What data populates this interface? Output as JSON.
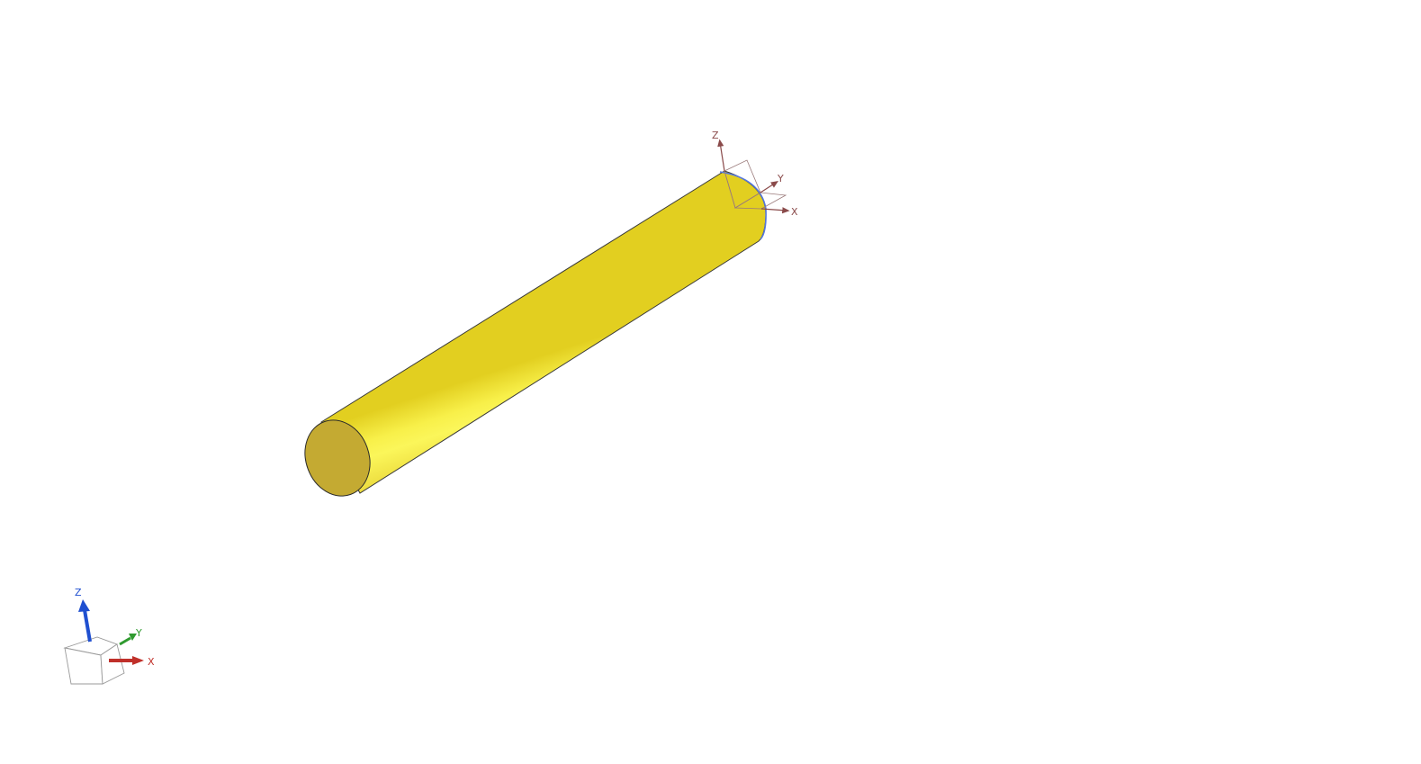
{
  "viewport": {
    "background": "#ffffff"
  },
  "model": {
    "shape": "cylinder",
    "body_color": "#f5e93a",
    "end_cap_color": "#c4aa32",
    "outline_color": "#333333"
  },
  "part_csys": {
    "x_label": "X",
    "y_label": "Y",
    "z_label": "Z",
    "color": "#8a4a4a",
    "highlight_color": "#5577dd"
  },
  "view_triad": {
    "x_label": "X",
    "y_label": "Y",
    "z_label": "Z",
    "x_color": "#c0302a",
    "y_color": "#2f9a2f",
    "z_color": "#1f4fd0",
    "cube_color": "#9a9a9a"
  }
}
